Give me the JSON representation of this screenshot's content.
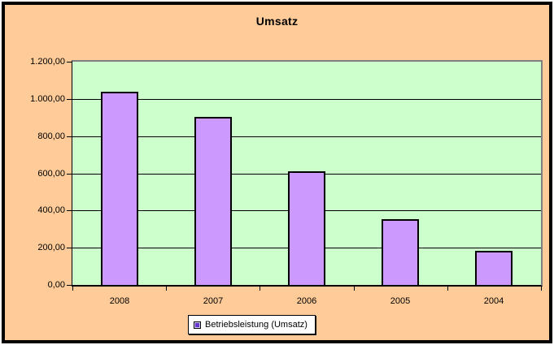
{
  "chart": {
    "title": "Umsatz"
  },
  "legend": {
    "label": "Betriebsleistung (Umsatz)"
  },
  "colors": {
    "chart_background": "#ffcc99",
    "plot_background": "#ccffcc",
    "bar_fill": "#cc99ff",
    "bar_border": "#000000",
    "plot_border_gray": "#808080",
    "gridline": "#000000",
    "legend_marker_ring": "#ccccff",
    "legend_marker_inner": "#6633cc",
    "frame_border": "#000000",
    "text": "#000000"
  },
  "chart_data": {
    "type": "bar",
    "title": "Umsatz",
    "categories": [
      "2008",
      "2007",
      "2006",
      "2005",
      "2004"
    ],
    "series": [
      {
        "name": "Betriebsleistung (Umsatz)",
        "values": [
          1040,
          905,
          610,
          355,
          185
        ],
        "color": "#cc99ff"
      }
    ],
    "values": [
      1040,
      905,
      610,
      355,
      185
    ],
    "xlabel": "",
    "ylabel": "",
    "ylim": [
      0,
      1200
    ],
    "ytick_interval": 200,
    "yticks": [
      {
        "value": 1200,
        "label": "1.200,00"
      },
      {
        "value": 1000,
        "label": "1.000,00"
      },
      {
        "value": 800,
        "label": "800,00"
      },
      {
        "value": 600,
        "label": "600,00"
      },
      {
        "value": 400,
        "label": "400,00"
      },
      {
        "value": 200,
        "label": "200,00"
      },
      {
        "value": 0,
        "label": "0,00"
      }
    ],
    "grid": true,
    "legend_position": "bottom",
    "number_format": "de-DE"
  }
}
